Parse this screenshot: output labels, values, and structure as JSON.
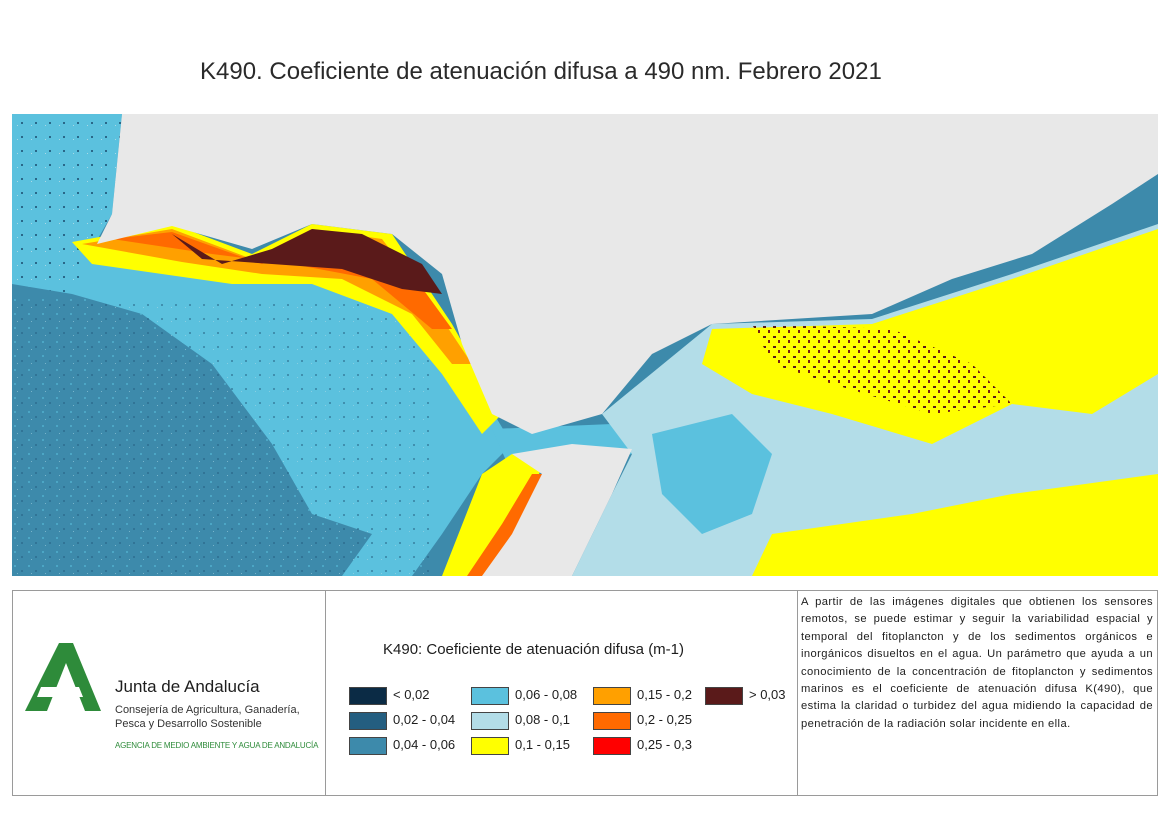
{
  "title": "K490. Coeficiente de atenuación difusa a 490 nm. Febrero 2021",
  "map": {
    "land_color": "#e8e8e8",
    "classes_present": [
      "0,04 - 0,06",
      "0,06 - 0,08",
      "0,08 - 0,1",
      "0,1 - 0,15",
      "0,15 - 0,2",
      "0,2 - 0,25",
      "0,25 - 0,3",
      "> 0,03"
    ]
  },
  "logo": {
    "name": "Junta de Andalucía",
    "subtitle": "Consejería de Agricultura, Ganadería, Pesca y Desarrollo Sostenible",
    "agency": "AGENCIA DE MEDIO AMBIENTE Y AGUA DE ANDALUCÍA",
    "brand_color": "#2e8b3a"
  },
  "legend": {
    "title": "K490: Coeficiente de atenuación difusa (m-1)",
    "items": [
      {
        "label": "< 0,02",
        "color": "#0b2b45"
      },
      {
        "label": "0,02 - 0,04",
        "color": "#245e80"
      },
      {
        "label": "0,04 - 0,06",
        "color": "#3d8aab"
      },
      {
        "label": "0,06 - 0,08",
        "color": "#5bc1de"
      },
      {
        "label": "0,08 - 0,1",
        "color": "#b3dde8"
      },
      {
        "label": "0,1 - 0,15",
        "color": "#ffff00"
      },
      {
        "label": "0,15 - 0,2",
        "color": "#ffa000"
      },
      {
        "label": "0,2 - 0,25",
        "color": "#ff6a00"
      },
      {
        "label": "0,25 - 0,3",
        "color": "#ff0000"
      },
      {
        "label": "> 0,03",
        "color": "#5a1a1a"
      }
    ]
  },
  "description": "A partir de las imágenes digitales que obtienen los sensores remotos, se puede estimar y seguir la variabilidad espacial y temporal del fitoplancton y de los sedimentos orgánicos e inorgánicos disueltos en el agua. Un parámetro que ayuda a un conocimiento de la concentración de fitoplancton y sedimentos marinos es el coeficiente de atenuación difusa K(490), que estima la claridad o turbidez del agua midiendo la capacidad de penetración de la radiación solar incidente en ella."
}
